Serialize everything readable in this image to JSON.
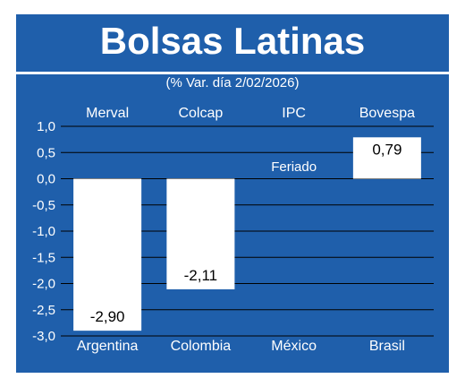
{
  "chart_data": {
    "type": "bar",
    "title": "Bolsas Latinas",
    "subtitle": "(% Var. día 2/02/2026)",
    "indices": [
      "Merval",
      "Colcap",
      "IPC",
      "Bovespa"
    ],
    "categories": [
      "Argentina",
      "Colombia",
      "México",
      "Brasil"
    ],
    "values": [
      -2.9,
      -2.11,
      null,
      0.79
    ],
    "value_labels": [
      "-2,90",
      "-2,11",
      "",
      "0,79"
    ],
    "annotations": [
      {
        "category": "México",
        "text": "Feriado"
      }
    ],
    "ylim": [
      -3.0,
      1.0
    ],
    "yticks": [
      1.0,
      0.5,
      0.0,
      -0.5,
      -1.0,
      -1.5,
      -2.0,
      -2.5,
      -3.0
    ],
    "ytick_labels": [
      "1,0",
      "0,5",
      "0,0",
      "-0,5",
      "-1,0",
      "-1,5",
      "-2,0",
      "-2,5",
      "-3,0"
    ],
    "grid": true,
    "colors": {
      "background": "#1f5fab",
      "bar": "#ffffff",
      "text": "#ffffff",
      "bar_label": "#000000"
    }
  }
}
